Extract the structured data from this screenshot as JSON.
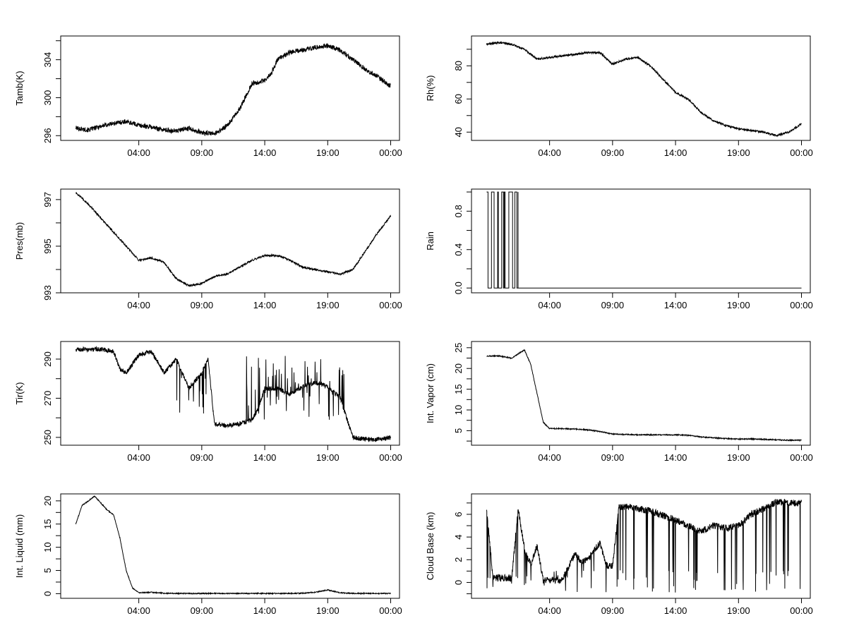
{
  "chart_data": [
    {
      "type": "line",
      "ylabel": "Tamb(K)",
      "ylim": [
        295.5,
        306.5
      ],
      "yticks": [
        296,
        300,
        304
      ],
      "xlim": [
        -2.2,
        24.7
      ],
      "xticks": [
        4,
        9,
        14,
        19,
        24
      ],
      "xtick_labels": [
        "04:00",
        "09:00",
        "14:00",
        "19:00",
        "00:00"
      ],
      "noise": 0.25,
      "series": [
        {
          "name": "Tamb(K)",
          "x": [
            -1,
            0,
            1,
            2,
            3,
            4,
            5,
            6,
            7,
            8,
            9,
            10,
            11,
            12,
            13,
            14,
            14.5,
            15,
            16,
            17,
            18,
            19,
            20,
            21,
            22,
            23,
            24
          ],
          "values": [
            296.8,
            296.6,
            297.0,
            297.3,
            297.5,
            297.1,
            296.9,
            296.6,
            296.5,
            296.8,
            296.3,
            296.2,
            297.0,
            298.8,
            301.5,
            301.8,
            302.5,
            304.0,
            304.8,
            305.0,
            305.3,
            305.5,
            305.0,
            304.0,
            303.0,
            302.2,
            301.2
          ]
        }
      ]
    },
    {
      "type": "line",
      "ylabel": "Rh(%)",
      "ylim": [
        35,
        98
      ],
      "yticks": [
        40,
        60,
        80
      ],
      "xlim": [
        -2.2,
        24.7
      ],
      "xticks": [
        4,
        9,
        14,
        19,
        24
      ],
      "xtick_labels": [
        "04:00",
        "09:00",
        "14:00",
        "19:00",
        "00:00"
      ],
      "noise": 0.6,
      "series": [
        {
          "name": "Rh(%)",
          "x": [
            -1,
            0,
            1,
            2,
            3,
            4,
            5,
            6,
            7,
            8,
            9,
            10,
            11,
            12,
            13,
            14,
            15,
            16,
            17,
            18,
            19,
            20,
            21,
            22,
            23,
            24
          ],
          "values": [
            93,
            94,
            93,
            90,
            84,
            85,
            86,
            87,
            88,
            88,
            81,
            84,
            85,
            80,
            72,
            64,
            60,
            52,
            47,
            44,
            42,
            41,
            40,
            38,
            40,
            45
          ]
        }
      ]
    },
    {
      "type": "line",
      "ylabel": "Pres(mb)",
      "ylim": [
        993,
        997.45
      ],
      "yticks": [
        993,
        995,
        997
      ],
      "xlim": [
        -2.2,
        24.7
      ],
      "xticks": [
        4,
        9,
        14,
        19,
        24
      ],
      "xtick_labels": [
        "04:00",
        "09:00",
        "14:00",
        "19:00",
        "00:00"
      ],
      "noise": 0.04,
      "series": [
        {
          "name": "Pres(mb)",
          "x": [
            -1,
            0,
            1,
            2,
            3,
            4,
            5,
            6,
            7,
            8,
            9,
            10,
            11,
            12,
            13,
            14,
            15,
            16,
            17,
            18,
            19,
            20,
            21,
            22,
            23,
            24
          ],
          "values": [
            997.3,
            996.8,
            996.2,
            995.6,
            995.0,
            994.4,
            994.5,
            994.3,
            993.6,
            993.3,
            993.4,
            993.7,
            993.8,
            994.1,
            994.4,
            994.6,
            994.6,
            994.4,
            994.1,
            994.0,
            993.9,
            993.8,
            994.0,
            994.8,
            995.6,
            996.3
          ]
        }
      ]
    },
    {
      "type": "line",
      "ylabel": "Rain",
      "ylim": [
        -0.05,
        1.03
      ],
      "yticks": [
        0.0,
        0.4,
        0.8
      ],
      "ytick_labels": [
        "0.0",
        "0.4",
        "0.8"
      ],
      "xlim": [
        -2.2,
        24.7
      ],
      "xticks": [
        4,
        9,
        14,
        19,
        24
      ],
      "xtick_labels": [
        "04:00",
        "09:00",
        "14:00",
        "19:00",
        "00:00"
      ],
      "series": [
        {
          "name": "Rain",
          "x": [
            -1,
            1.5,
            24
          ],
          "values": [
            1,
            0,
            0
          ]
        }
      ]
    },
    {
      "type": "line",
      "ylabel": "Tir(K)",
      "ylim": [
        246,
        299
      ],
      "yticks": [
        250,
        270,
        290
      ],
      "xlim": [
        -2.2,
        24.7
      ],
      "xticks": [
        4,
        9,
        14,
        19,
        24
      ],
      "xtick_labels": [
        "04:00",
        "09:00",
        "14:00",
        "19:00",
        "00:00"
      ],
      "noise": 1.2,
      "series": [
        {
          "name": "Tir(K)",
          "x": [
            -1,
            0,
            1,
            2,
            2.5,
            3,
            4,
            5,
            6,
            7,
            8,
            9,
            9.5,
            10,
            11,
            12,
            13,
            13.5,
            14,
            15,
            16,
            17,
            18,
            19,
            20,
            21,
            22,
            23,
            24
          ],
          "values": [
            295,
            295,
            295,
            294,
            285,
            283,
            292,
            294,
            283,
            290,
            275,
            283,
            290,
            257,
            256,
            257,
            259,
            265,
            275,
            275,
            272,
            276,
            278,
            276,
            270,
            250,
            249,
            249,
            250
          ]
        }
      ]
    },
    {
      "type": "line",
      "ylabel": "Int. Vapor (cm)",
      "ylim": [
        1.5,
        26.5
      ],
      "yticks": [
        5,
        10,
        15,
        20,
        25
      ],
      "xlim": [
        -2.2,
        24.7
      ],
      "xticks": [
        4,
        9,
        14,
        19,
        24
      ],
      "xtick_labels": [
        "04:00",
        "09:00",
        "14:00",
        "19:00",
        "00:00"
      ],
      "noise": 0.12,
      "series": [
        {
          "name": "Int. Vapor (cm)",
          "x": [
            -1,
            0,
            1,
            1.5,
            2,
            2.5,
            3,
            3.5,
            4,
            5,
            6,
            7,
            8,
            9,
            10,
            11,
            12,
            13,
            14,
            15,
            16,
            17,
            18,
            19,
            20,
            21,
            22,
            23,
            24
          ],
          "values": [
            23,
            23,
            22.5,
            23.5,
            24.5,
            21,
            14,
            7,
            5.5,
            5.5,
            5.4,
            5.2,
            4.8,
            4.2,
            4.1,
            4.0,
            4.0,
            4.0,
            4.0,
            3.9,
            3.5,
            3.3,
            3.1,
            3.0,
            3.0,
            2.9,
            2.8,
            2.7,
            2.7
          ]
        }
      ]
    },
    {
      "type": "line",
      "ylabel": "Int. Liquid (mm)",
      "ylim": [
        -1,
        21.5
      ],
      "yticks": [
        0,
        5,
        10,
        15,
        20
      ],
      "xlim": [
        -2.2,
        24.7
      ],
      "xticks": [
        4,
        9,
        14,
        19,
        24
      ],
      "xtick_labels": [
        "04:00",
        "09:00",
        "14:00",
        "19:00",
        "00:00"
      ],
      "noise": 0.1,
      "series": [
        {
          "name": "Int. Liquid (mm)",
          "x": [
            -1,
            -0.5,
            0,
            0.5,
            1,
            1.5,
            2,
            2.5,
            3,
            3.5,
            4,
            5,
            6,
            7,
            8,
            9,
            10,
            11,
            12,
            13,
            14,
            15,
            16,
            17,
            18,
            19,
            20,
            21,
            22,
            23,
            24
          ],
          "values": [
            15,
            19,
            20,
            21,
            19.5,
            18,
            17,
            12,
            5,
            1.2,
            0.2,
            0.3,
            0.1,
            0.05,
            0.05,
            0.05,
            0.05,
            0.05,
            0.05,
            0.05,
            0.05,
            0.05,
            0.05,
            0.1,
            0.3,
            0.8,
            0.2,
            0.05,
            0.05,
            0.05,
            0.05
          ]
        }
      ]
    },
    {
      "type": "line",
      "ylabel": "Cloud Base (km)",
      "ylim": [
        -1.4,
        7.8
      ],
      "yticks": [
        0,
        2,
        4,
        6
      ],
      "xlim": [
        -2.2,
        24.7
      ],
      "xticks": [
        4,
        9,
        14,
        19,
        24
      ],
      "xtick_labels": [
        "04:00",
        "09:00",
        "14:00",
        "19:00",
        "00:00"
      ],
      "noise": 0.3,
      "series": [
        {
          "name": "Cloud Base (km)",
          "x": [
            -1,
            -0.5,
            0,
            1,
            1.5,
            2,
            2.5,
            3,
            3.5,
            4,
            5,
            6,
            6.5,
            7,
            8,
            8.5,
            9,
            9.5,
            10,
            11,
            12,
            13,
            14,
            15,
            16,
            17,
            18,
            19,
            20,
            21,
            22,
            23,
            24
          ],
          "values": [
            6.5,
            0.4,
            0.4,
            0.4,
            6.5,
            3.0,
            1.5,
            3.2,
            0.2,
            0.2,
            0.2,
            2.5,
            1.8,
            2.0,
            3.5,
            1.5,
            1.5,
            6.6,
            6.7,
            6.5,
            6.3,
            5.9,
            5.5,
            5.0,
            4.5,
            5.0,
            4.8,
            5.0,
            6.0,
            6.5,
            7.1,
            7.0,
            7.0
          ]
        }
      ]
    }
  ]
}
